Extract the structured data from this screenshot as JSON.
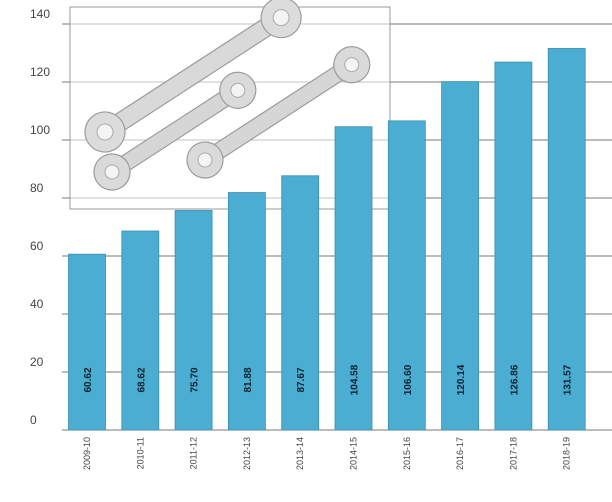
{
  "chart_data": {
    "type": "bar",
    "categories": [
      "2009-10",
      "2010-11",
      "2011-12",
      "2012-13",
      "2013-14",
      "2014-15",
      "2015-16",
      "2016-17",
      "2017-18",
      "2018-19"
    ],
    "values": [
      60.62,
      68.62,
      75.7,
      81.88,
      87.67,
      104.58,
      106.6,
      120.14,
      126.86,
      131.57
    ],
    "data_labels": [
      "60.62",
      "68.62",
      "75.70",
      "81.88",
      "87.67",
      "104.58",
      "106.60",
      "120.14",
      "126.86",
      "131.57"
    ],
    "yticks": [
      0,
      20,
      40,
      60,
      80,
      100,
      120,
      140
    ],
    "ylim": [
      0,
      140
    ],
    "grid": true,
    "bar_color": "#4badd1",
    "inset_image": "wrench-icon"
  }
}
